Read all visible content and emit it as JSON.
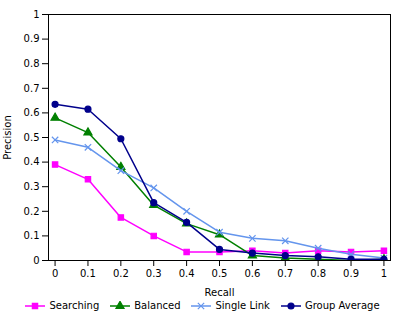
{
  "chart_data": {
    "type": "line",
    "x": [
      0.0,
      0.1,
      0.2,
      0.3,
      0.4,
      0.5,
      0.6,
      0.7,
      0.8,
      0.9,
      1.0
    ],
    "series": [
      {
        "name": "Searching",
        "color": "#ff00ff",
        "marker": "square",
        "values": [
          0.39,
          0.33,
          0.175,
          0.1,
          0.035,
          0.035,
          0.04,
          0.03,
          0.04,
          0.035,
          0.04
        ]
      },
      {
        "name": "Balanced",
        "color": "#008000",
        "marker": "triangle",
        "values": [
          0.58,
          0.52,
          0.38,
          0.225,
          0.15,
          0.105,
          0.02,
          0.01,
          0.005,
          0.0,
          0.005
        ]
      },
      {
        "name": "Single Link",
        "color": "#6495ED",
        "marker": "x",
        "values": [
          0.49,
          0.46,
          0.365,
          0.295,
          0.2,
          0.115,
          0.09,
          0.08,
          0.05,
          0.025,
          0.01
        ]
      },
      {
        "name": "Group Average",
        "color": "#00008B",
        "marker": "circle",
        "values": [
          0.635,
          0.615,
          0.495,
          0.235,
          0.155,
          0.045,
          0.03,
          0.02,
          0.015,
          0.005,
          0.005
        ]
      }
    ],
    "xlabel": "Recall",
    "ylabel": "Precision",
    "xlim": [
      -0.02,
      1.02
    ],
    "ylim": [
      0.0,
      1.0
    ],
    "xticks": [
      0.0,
      0.1,
      0.2,
      0.3,
      0.4,
      0.5,
      0.6,
      0.7,
      0.8,
      0.9,
      1.0
    ],
    "yticks": [
      0.0,
      0.1,
      0.2,
      0.3,
      0.4,
      0.5,
      0.6,
      0.7,
      0.8,
      0.9,
      1.0
    ],
    "grid": false,
    "legend": "bottom"
  }
}
